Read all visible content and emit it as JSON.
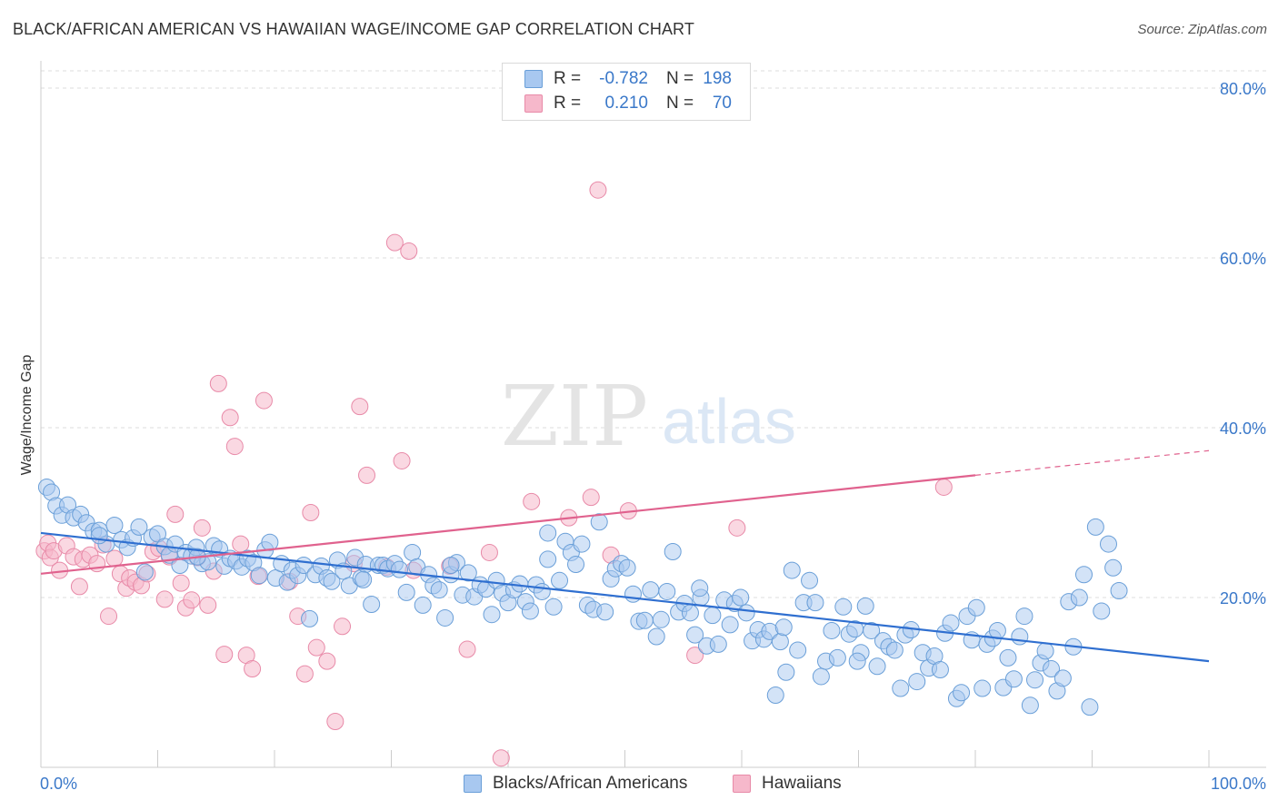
{
  "header": {
    "title": "BLACK/AFRICAN AMERICAN VS HAWAIIAN WAGE/INCOME GAP CORRELATION CHART",
    "source": "Source: ZipAtlas.com"
  },
  "legend": {
    "rows": [
      {
        "r_label": "R =",
        "r_value": "-0.782",
        "n_label": "N =",
        "n_value": "198",
        "color": "#a8c8f0"
      },
      {
        "r_label": "R =",
        "r_value": "0.210",
        "n_label": "N =",
        "n_value": "70",
        "color": "#f6b8cb"
      }
    ]
  },
  "bottom_legend": [
    {
      "label": "Blacks/African Americans",
      "color": "#a8c8f0"
    },
    {
      "label": "Hawaiians",
      "color": "#f6b8cb"
    }
  ],
  "watermark": {
    "zip": "ZIP",
    "atlas": "atlas"
  },
  "colors": {
    "blue_fill": "#a8c8f0",
    "blue_stroke": "#6a9fd8",
    "blue_line": "#2f6fd0",
    "pink_fill": "#f6b8cb",
    "pink_stroke": "#e88aa8",
    "pink_line": "#e0628e",
    "axis_text": "#3a78c9",
    "grid": "#dddddd"
  },
  "chart_data": {
    "type": "scatter",
    "ylabel": "Wage/Income Gap",
    "xlim": [
      0,
      100
    ],
    "ylim": [
      0,
      80
    ],
    "x_tick_labels": [
      "0.0%",
      "100.0%"
    ],
    "y_ticks": [
      20,
      40,
      60,
      80
    ],
    "y_tick_labels": [
      "20.0%",
      "40.0%",
      "60.0%",
      "80.0%"
    ],
    "grid": true,
    "legend_position": "top-center",
    "series": [
      {
        "name": "Blacks/African Americans",
        "color": "#a8c8f0",
        "trend": {
          "x0": 0,
          "y0": 27.6,
          "x1": 100,
          "y1": 12.5
        },
        "points": [
          [
            0.5,
            33.0
          ],
          [
            0.9,
            32.4
          ],
          [
            1.3,
            30.8
          ],
          [
            1.8,
            29.7
          ],
          [
            2.3,
            30.9
          ],
          [
            2.8,
            29.4
          ],
          [
            3.4,
            29.8
          ],
          [
            3.9,
            28.8
          ],
          [
            4.5,
            27.8
          ],
          [
            5.0,
            27.9
          ],
          [
            5.6,
            26.3
          ],
          [
            6.3,
            28.5
          ],
          [
            6.9,
            26.8
          ],
          [
            7.4,
            25.9
          ],
          [
            7.9,
            27.0
          ],
          [
            8.4,
            28.3
          ],
          [
            8.9,
            23.0
          ],
          [
            9.5,
            27.1
          ],
          [
            10.0,
            27.5
          ],
          [
            10.6,
            26.0
          ],
          [
            11.0,
            25.0
          ],
          [
            11.5,
            26.3
          ],
          [
            11.9,
            23.8
          ],
          [
            12.4,
            25.3
          ],
          [
            12.9,
            24.9
          ],
          [
            13.3,
            25.9
          ],
          [
            13.8,
            24.0
          ],
          [
            14.3,
            24.2
          ],
          [
            14.8,
            26.1
          ],
          [
            15.3,
            25.7
          ],
          [
            15.7,
            23.7
          ],
          [
            16.2,
            24.6
          ],
          [
            16.7,
            24.3
          ],
          [
            17.2,
            23.6
          ],
          [
            17.7,
            24.6
          ],
          [
            18.2,
            24.1
          ],
          [
            18.7,
            22.6
          ],
          [
            19.2,
            25.6
          ],
          [
            19.6,
            26.5
          ],
          [
            20.1,
            22.3
          ],
          [
            20.6,
            24.0
          ],
          [
            21.1,
            21.8
          ],
          [
            21.5,
            23.2
          ],
          [
            22.0,
            22.6
          ],
          [
            22.5,
            23.8
          ],
          [
            23.0,
            17.5
          ],
          [
            23.5,
            22.7
          ],
          [
            24.0,
            23.7
          ],
          [
            24.5,
            22.3
          ],
          [
            24.9,
            21.9
          ],
          [
            25.4,
            24.4
          ],
          [
            25.9,
            23.1
          ],
          [
            26.4,
            21.4
          ],
          [
            26.9,
            24.7
          ],
          [
            27.4,
            22.3
          ],
          [
            27.8,
            23.9
          ],
          [
            28.3,
            19.2
          ],
          [
            28.9,
            23.8
          ],
          [
            29.3,
            23.8
          ],
          [
            29.7,
            23.4
          ],
          [
            30.3,
            24.0
          ],
          [
            30.7,
            23.3
          ],
          [
            31.3,
            20.6
          ],
          [
            31.8,
            25.3
          ],
          [
            32.2,
            23.6
          ],
          [
            32.7,
            19.1
          ],
          [
            33.2,
            22.7
          ],
          [
            33.6,
            21.4
          ],
          [
            34.1,
            20.9
          ],
          [
            34.6,
            17.6
          ],
          [
            35.1,
            22.7
          ],
          [
            35.6,
            24.1
          ],
          [
            36.1,
            20.3
          ],
          [
            36.6,
            22.9
          ],
          [
            37.1,
            20.1
          ],
          [
            37.6,
            21.5
          ],
          [
            38.1,
            21.0
          ],
          [
            38.6,
            18.0
          ],
          [
            39.0,
            22.0
          ],
          [
            39.5,
            20.5
          ],
          [
            40.0,
            19.4
          ],
          [
            40.5,
            20.9
          ],
          [
            41.0,
            21.6
          ],
          [
            41.5,
            19.5
          ],
          [
            41.9,
            18.4
          ],
          [
            42.4,
            21.5
          ],
          [
            42.9,
            20.7
          ],
          [
            43.4,
            27.6
          ],
          [
            43.9,
            18.9
          ],
          [
            44.4,
            22.0
          ],
          [
            44.9,
            26.6
          ],
          [
            45.4,
            25.3
          ],
          [
            45.8,
            23.9
          ],
          [
            46.3,
            26.3
          ],
          [
            46.8,
            19.1
          ],
          [
            47.3,
            18.6
          ],
          [
            47.8,
            28.9
          ],
          [
            48.3,
            18.3
          ],
          [
            48.8,
            22.2
          ],
          [
            49.2,
            23.4
          ],
          [
            49.7,
            24.0
          ],
          [
            50.2,
            23.5
          ],
          [
            50.7,
            20.4
          ],
          [
            51.2,
            17.2
          ],
          [
            51.7,
            17.3
          ],
          [
            52.2,
            20.9
          ],
          [
            52.7,
            15.4
          ],
          [
            53.1,
            17.4
          ],
          [
            53.6,
            20.7
          ],
          [
            54.1,
            25.4
          ],
          [
            54.6,
            18.3
          ],
          [
            55.1,
            19.3
          ],
          [
            55.6,
            18.2
          ],
          [
            56.0,
            15.6
          ],
          [
            56.5,
            20.0
          ],
          [
            57.0,
            14.3
          ],
          [
            57.5,
            17.9
          ],
          [
            58.0,
            14.5
          ],
          [
            58.5,
            19.7
          ],
          [
            59.0,
            16.8
          ],
          [
            59.4,
            19.3
          ],
          [
            59.9,
            20.0
          ],
          [
            60.4,
            18.2
          ],
          [
            60.9,
            14.9
          ],
          [
            61.4,
            16.2
          ],
          [
            61.9,
            15.1
          ],
          [
            62.4,
            16.0
          ],
          [
            62.9,
            8.5
          ],
          [
            63.3,
            14.8
          ],
          [
            63.8,
            11.2
          ],
          [
            64.3,
            23.2
          ],
          [
            64.8,
            13.8
          ],
          [
            65.3,
            19.4
          ],
          [
            65.8,
            22.0
          ],
          [
            66.3,
            19.4
          ],
          [
            66.8,
            10.7
          ],
          [
            67.2,
            12.5
          ],
          [
            67.7,
            16.1
          ],
          [
            68.2,
            12.9
          ],
          [
            68.7,
            18.9
          ],
          [
            69.2,
            15.7
          ],
          [
            69.7,
            16.3
          ],
          [
            70.2,
            13.5
          ],
          [
            70.6,
            19.0
          ],
          [
            71.1,
            16.1
          ],
          [
            71.6,
            11.9
          ],
          [
            72.1,
            14.9
          ],
          [
            72.6,
            14.2
          ],
          [
            73.1,
            13.8
          ],
          [
            73.6,
            9.3
          ],
          [
            74.0,
            15.6
          ],
          [
            74.5,
            16.2
          ],
          [
            75.0,
            10.1
          ],
          [
            75.5,
            13.5
          ],
          [
            76.0,
            11.7
          ],
          [
            76.5,
            13.1
          ],
          [
            77.0,
            11.5
          ],
          [
            77.4,
            15.8
          ],
          [
            77.9,
            17.0
          ],
          [
            78.4,
            8.1
          ],
          [
            78.8,
            8.8
          ],
          [
            79.3,
            17.8
          ],
          [
            79.7,
            15.0
          ],
          [
            80.1,
            18.8
          ],
          [
            80.6,
            9.3
          ],
          [
            81.0,
            14.5
          ],
          [
            81.5,
            15.2
          ],
          [
            81.9,
            16.1
          ],
          [
            82.4,
            9.4
          ],
          [
            82.8,
            12.9
          ],
          [
            83.3,
            10.4
          ],
          [
            83.8,
            15.4
          ],
          [
            84.2,
            17.8
          ],
          [
            84.7,
            7.3
          ],
          [
            85.1,
            10.3
          ],
          [
            85.6,
            12.3
          ],
          [
            86.0,
            13.7
          ],
          [
            86.5,
            11.6
          ],
          [
            87.0,
            9.0
          ],
          [
            87.5,
            10.5
          ],
          [
            88.0,
            19.5
          ],
          [
            88.4,
            14.2
          ],
          [
            88.9,
            20.0
          ],
          [
            89.3,
            22.7
          ],
          [
            89.8,
            7.1
          ],
          [
            90.3,
            28.3
          ],
          [
            90.8,
            18.4
          ],
          [
            91.4,
            26.3
          ],
          [
            91.8,
            23.5
          ],
          [
            92.3,
            20.8
          ],
          [
            56.4,
            21.1
          ],
          [
            63.6,
            16.5
          ],
          [
            69.9,
            12.5
          ],
          [
            43.4,
            24.5
          ],
          [
            35.1,
            23.8
          ],
          [
            27.6,
            22.1
          ],
          [
            13.4,
            24.8
          ],
          [
            5.0,
            27.3
          ]
        ]
      },
      {
        "name": "Hawaiians",
        "color": "#f6b8cb",
        "trend": {
          "x0": 0,
          "y0": 22.8,
          "x1": 80,
          "y1": 34.4,
          "x_ext": 100,
          "y_ext": 37.3
        },
        "points": [
          [
            0.3,
            25.5
          ],
          [
            0.6,
            26.4
          ],
          [
            0.8,
            24.7
          ],
          [
            1.1,
            25.5
          ],
          [
            1.6,
            23.2
          ],
          [
            2.2,
            26.1
          ],
          [
            2.8,
            24.8
          ],
          [
            3.3,
            21.3
          ],
          [
            3.6,
            24.5
          ],
          [
            4.2,
            25.0
          ],
          [
            4.8,
            24.0
          ],
          [
            5.3,
            26.2
          ],
          [
            5.8,
            17.8
          ],
          [
            6.3,
            24.6
          ],
          [
            6.8,
            22.8
          ],
          [
            7.3,
            21.1
          ],
          [
            7.6,
            22.3
          ],
          [
            8.1,
            21.8
          ],
          [
            8.6,
            21.4
          ],
          [
            9.1,
            22.8
          ],
          [
            9.6,
            25.4
          ],
          [
            10.1,
            25.8
          ],
          [
            10.6,
            19.8
          ],
          [
            11.0,
            24.8
          ],
          [
            11.5,
            29.8
          ],
          [
            12.0,
            21.7
          ],
          [
            12.4,
            18.8
          ],
          [
            12.9,
            19.7
          ],
          [
            13.4,
            24.7
          ],
          [
            13.8,
            28.2
          ],
          [
            14.3,
            19.1
          ],
          [
            14.8,
            23.1
          ],
          [
            15.2,
            45.2
          ],
          [
            15.7,
            13.3
          ],
          [
            16.2,
            41.2
          ],
          [
            16.6,
            37.8
          ],
          [
            17.1,
            26.3
          ],
          [
            17.6,
            13.2
          ],
          [
            18.1,
            11.6
          ],
          [
            18.6,
            22.5
          ],
          [
            19.1,
            43.2
          ],
          [
            21.3,
            21.9
          ],
          [
            22.0,
            17.8
          ],
          [
            22.6,
            11.0
          ],
          [
            23.1,
            30.0
          ],
          [
            23.6,
            14.1
          ],
          [
            24.5,
            12.5
          ],
          [
            25.2,
            5.4
          ],
          [
            25.8,
            16.6
          ],
          [
            26.8,
            24.0
          ],
          [
            27.3,
            42.5
          ],
          [
            27.9,
            34.4
          ],
          [
            29.6,
            23.6
          ],
          [
            30.3,
            61.8
          ],
          [
            30.9,
            36.1
          ],
          [
            31.5,
            60.8
          ],
          [
            31.9,
            23.2
          ],
          [
            35.0,
            23.7
          ],
          [
            36.5,
            13.9
          ],
          [
            38.4,
            25.3
          ],
          [
            39.4,
            1.1
          ],
          [
            42.0,
            31.3
          ],
          [
            45.2,
            29.4
          ],
          [
            47.1,
            31.8
          ],
          [
            47.7,
            68.0
          ],
          [
            48.8,
            25.0
          ],
          [
            50.3,
            30.2
          ],
          [
            56.0,
            13.2
          ],
          [
            59.6,
            28.2
          ],
          [
            77.3,
            33.0
          ]
        ]
      }
    ]
  }
}
